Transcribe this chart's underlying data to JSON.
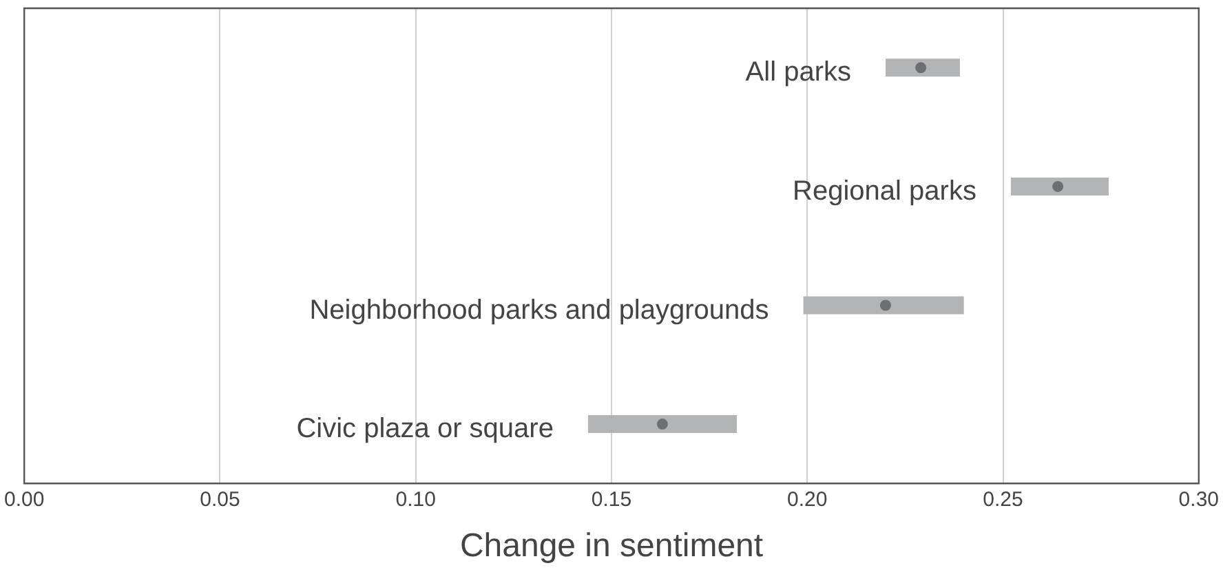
{
  "chart_data": {
    "type": "scatter",
    "orientation": "horizontal",
    "xlabel": "Change in sentiment",
    "categories": [
      "All parks",
      "Regional parks",
      "Neighborhood parks and playgrounds",
      "Civic plaza or square"
    ],
    "series": [
      {
        "color": "#6d6e71",
        "values": [
          0.229,
          0.264,
          0.22,
          0.163
        ],
        "errors": [
          [
            0.22,
            0.239
          ],
          [
            0.252,
            0.277
          ],
          [
            0.199,
            0.24
          ],
          [
            0.144,
            0.182
          ]
        ]
      }
    ],
    "xlim": [
      0,
      0.3
    ],
    "xticks": [
      {
        "value": 0,
        "label": "0.00"
      },
      {
        "value": 0.05,
        "label": "0.05"
      },
      {
        "value": 0.1,
        "label": "0.10"
      },
      {
        "value": 0.15,
        "label": "0.15"
      },
      {
        "value": 0.2,
        "label": "0.20"
      },
      {
        "value": 0.25,
        "label": "0.25"
      },
      {
        "value": 0.3,
        "label": "0.30"
      }
    ],
    "grid": "x",
    "tick_labels": "x",
    "legend": false,
    "marker": "circle"
  }
}
